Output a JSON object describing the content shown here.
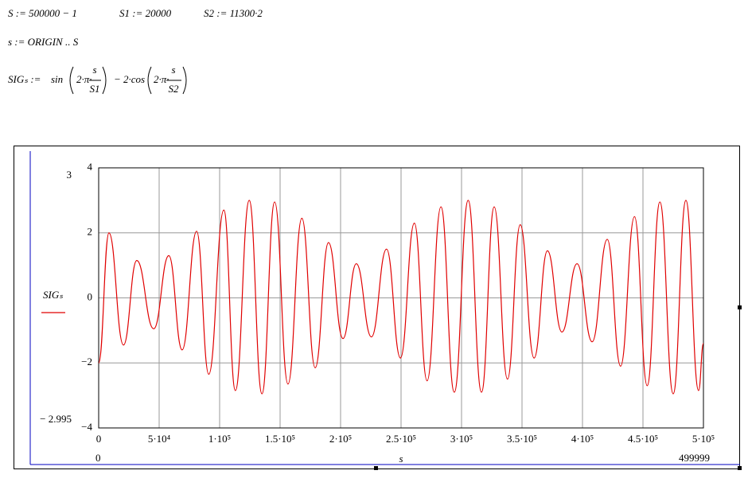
{
  "worksheet": {
    "line1": [
      "S := 500000 − 1",
      "S1 := 20000",
      "S2 := 11300·2"
    ],
    "line2": "s := ORIGIN .. S",
    "formula": {
      "lhs": "SIGₛ :=",
      "f1": "sin",
      "a1": "2·π·",
      "n1": "s",
      "d1": "S1",
      "mid": "− 2·cos",
      "a2": "2·π·",
      "n2": "s",
      "d2": "S2"
    }
  },
  "chart_data": {
    "type": "line",
    "xlabel": "s",
    "x_range_labels": [
      "0",
      "499999"
    ],
    "y_range_labels": [
      "3",
      "− 2.995"
    ],
    "xlim": [
      0,
      500000
    ],
    "ylim": [
      -4,
      4
    ],
    "xticks": [
      0,
      {
        "value": 50000,
        "label": "5·10⁴"
      },
      {
        "value": 100000,
        "label": "1·10⁵"
      },
      {
        "value": 150000,
        "label": "1.5·10⁵"
      },
      {
        "value": 200000,
        "label": "2·10⁵"
      },
      {
        "value": 250000,
        "label": "2.5·10⁵"
      },
      {
        "value": 300000,
        "label": "3·10⁵"
      },
      {
        "value": 350000,
        "label": "3.5·10⁵"
      },
      {
        "value": 400000,
        "label": "4·10⁵"
      },
      {
        "value": 450000,
        "label": "4.5·10⁵"
      },
      {
        "value": 500000,
        "label": "5·10⁵"
      }
    ],
    "yticks": [
      4,
      2,
      0,
      {
        "value": -2,
        "label": "−2"
      },
      {
        "value": -4,
        "label": "−4"
      }
    ],
    "grid": true,
    "series": [
      {
        "name": "SIGₛ",
        "color": "#e00000",
        "x": [
          0,
          8500,
          20500,
          31500,
          45500,
          58000,
          69000,
          81000,
          91000,
          103500,
          113000,
          124500,
          135000,
          145500,
          156500,
          168000,
          179000,
          190000,
          202000,
          213000,
          225500,
          238000,
          249500,
          261000,
          271500,
          283000,
          294000,
          305500,
          316500,
          327000,
          338000,
          348500,
          360000,
          371000,
          383000,
          395500,
          408000,
          420500,
          431500,
          443000,
          453500,
          464000,
          475000,
          485500,
          496000,
          499999
        ],
        "values": [
          -2,
          2.0,
          -1.45,
          1.15,
          -0.95,
          1.3,
          -1.6,
          2.05,
          -2.35,
          2.7,
          -2.85,
          3.0,
          -2.95,
          2.95,
          -2.65,
          2.45,
          -2.15,
          1.7,
          -1.25,
          1.05,
          -1.2,
          1.5,
          -1.85,
          2.3,
          -2.55,
          2.8,
          -2.9,
          3.0,
          -2.9,
          2.8,
          -2.5,
          2.25,
          -1.85,
          1.45,
          -1.05,
          1.05,
          -1.35,
          1.8,
          -2.1,
          2.5,
          -2.7,
          2.95,
          -2.95,
          3.0,
          -2.85,
          -1.4
        ]
      }
    ]
  }
}
